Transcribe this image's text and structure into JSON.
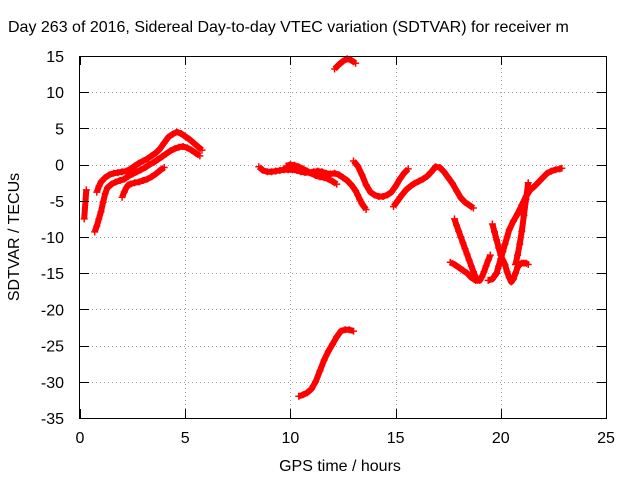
{
  "chart_data": {
    "type": "scatter",
    "title": "Day 263 of 2016, Sidereal Day-to-day VTEC variation (SDTVAR) for receiver m",
    "xlabel": "GPS time / hours",
    "ylabel": "SDTVAR / TECUs",
    "xlim": [
      0,
      25
    ],
    "ylim": [
      -35,
      15
    ],
    "x_ticks": [
      0,
      5,
      10,
      15,
      20,
      25
    ],
    "y_ticks": [
      -35,
      -30,
      -25,
      -20,
      -15,
      -10,
      -5,
      0,
      5,
      10,
      15
    ],
    "grid": true,
    "legend": "none",
    "marker": "plus",
    "color": "#ff0000",
    "series": [
      {
        "x": [
          0.2,
          0.3
        ],
        "y": [
          -7.5,
          -3.5
        ]
      },
      {
        "x": [
          0.7,
          0.8,
          0.9,
          1.0,
          1.1,
          1.2,
          1.3,
          1.5,
          1.7,
          1.9,
          2.1,
          2.3,
          2.5,
          2.7,
          2.9,
          3.1,
          3.3,
          3.5,
          3.7,
          3.9,
          4.1,
          4.3,
          4.5,
          4.7,
          4.9,
          5.1,
          5.3,
          5.5,
          5.7
        ],
        "y": [
          -9.3,
          -8.5,
          -7.5,
          -6.5,
          -5.2,
          -4.0,
          -3.2,
          -2.7,
          -2.4,
          -2.2,
          -2.0,
          -1.6,
          -1.3,
          -1.0,
          -0.7,
          -0.4,
          0.0,
          0.3,
          0.7,
          1.1,
          1.5,
          1.9,
          2.2,
          2.4,
          2.5,
          2.3,
          2.0,
          1.6,
          1.2
        ]
      },
      {
        "x": [
          0.8,
          0.9,
          1.0,
          1.2,
          1.4,
          1.6,
          1.8,
          2.0,
          2.2,
          2.4,
          2.6,
          2.8,
          3.0,
          3.2,
          3.4,
          3.6,
          3.8,
          4.0,
          4.2,
          4.4,
          4.6,
          4.8,
          5.0,
          5.2,
          5.4,
          5.6,
          5.8
        ],
        "y": [
          -3.8,
          -3.0,
          -2.4,
          -1.8,
          -1.4,
          -1.2,
          -1.1,
          -1.0,
          -0.9,
          -0.6,
          -0.2,
          0.2,
          0.5,
          0.8,
          1.2,
          1.6,
          2.2,
          3.0,
          3.8,
          4.2,
          4.5,
          4.3,
          3.9,
          3.5,
          3.0,
          2.5,
          2.0
        ]
      },
      {
        "x": [
          2.0,
          2.1,
          2.2,
          2.3,
          2.4,
          2.6,
          2.8,
          3.0,
          3.2,
          3.4,
          3.6,
          3.8,
          4.0
        ],
        "y": [
          -4.5,
          -3.8,
          -3.2,
          -2.8,
          -2.7,
          -2.5,
          -2.4,
          -2.2,
          -2.0,
          -1.7,
          -1.3,
          -0.8,
          -0.4
        ]
      },
      {
        "x": [
          8.5,
          8.7,
          8.9,
          9.1,
          9.3,
          9.5,
          9.7,
          9.9,
          10.1,
          10.3,
          10.5,
          10.7,
          10.9,
          11.1,
          11.3,
          11.5,
          11.7,
          11.9,
          12.1,
          12.3,
          12.5,
          12.7,
          12.9,
          13.0,
          13.1,
          13.2,
          13.3,
          13.4,
          13.5,
          13.6
        ],
        "y": [
          -0.3,
          -0.8,
          -1.0,
          -1.0,
          -0.9,
          -0.8,
          -0.7,
          -0.7,
          -0.7,
          -0.8,
          -1.0,
          -1.1,
          -1.1,
          -1.0,
          -0.9,
          -1.0,
          -1.2,
          -1.3,
          -1.2,
          -1.4,
          -1.8,
          -2.2,
          -2.8,
          -3.2,
          -3.6,
          -4.2,
          -4.8,
          -5.4,
          -5.8,
          -6.2
        ]
      },
      {
        "x": [
          9.8,
          10.0,
          10.2,
          10.4,
          10.6,
          10.8,
          11.0,
          11.2,
          11.4,
          11.6,
          11.8,
          12.0,
          12.2
        ],
        "y": [
          -0.2,
          0.0,
          -0.1,
          -0.3,
          -0.6,
          -0.9,
          -1.2,
          -1.5,
          -1.7,
          -1.8,
          -2.0,
          -2.3,
          -2.7
        ]
      },
      {
        "x": [
          10.4,
          10.6,
          10.8,
          11.0,
          11.2,
          11.4,
          11.6,
          11.8,
          12.0,
          12.2,
          12.4,
          12.6,
          12.8,
          13.0
        ],
        "y": [
          -32.0,
          -31.8,
          -31.5,
          -31.0,
          -30.0,
          -28.5,
          -27.0,
          -25.8,
          -24.8,
          -23.8,
          -23.0,
          -22.8,
          -22.8,
          -23.0
        ]
      },
      {
        "x": [
          12.1,
          12.3,
          12.5,
          12.7,
          12.9,
          13.1
        ],
        "y": [
          13.2,
          13.8,
          14.3,
          14.6,
          14.4,
          14.0
        ]
      },
      {
        "x": [
          13.0,
          13.2,
          13.4,
          13.6,
          13.8,
          14.0,
          14.2,
          14.4,
          14.6,
          14.8,
          15.0,
          15.2,
          15.4,
          15.6
        ],
        "y": [
          0.5,
          -0.2,
          -1.4,
          -2.8,
          -3.8,
          -4.2,
          -4.4,
          -4.4,
          -4.2,
          -3.8,
          -3.0,
          -2.0,
          -1.2,
          -0.6
        ]
      },
      {
        "x": [
          14.9,
          15.1,
          15.3,
          15.5,
          15.7,
          15.9,
          16.1,
          16.3,
          16.5,
          16.7,
          16.9,
          17.1,
          17.3,
          17.5,
          17.7,
          17.9,
          18.1,
          18.3,
          18.5,
          18.7
        ],
        "y": [
          -5.8,
          -5.0,
          -4.2,
          -3.5,
          -3.0,
          -2.6,
          -2.3,
          -2.0,
          -1.6,
          -1.0,
          -0.3,
          -0.4,
          -1.0,
          -1.8,
          -2.6,
          -3.6,
          -4.6,
          -5.2,
          -5.6,
          -6.0
        ]
      },
      {
        "x": [
          17.8,
          17.9,
          18.0,
          18.1,
          18.2,
          18.3,
          18.4,
          18.5,
          18.6,
          18.7,
          18.8,
          18.9,
          19.0,
          19.1,
          19.2,
          19.3,
          19.4,
          19.5
        ],
        "y": [
          -7.5,
          -8.4,
          -9.2,
          -10.0,
          -10.8,
          -11.6,
          -12.4,
          -13.2,
          -14.0,
          -14.8,
          -15.5,
          -16.0,
          -16.0,
          -15.5,
          -14.8,
          -14.0,
          -13.2,
          -12.5
        ]
      },
      {
        "x": [
          17.6,
          17.8,
          18.0,
          18.2,
          18.4,
          18.6,
          18.8,
          19.0
        ],
        "y": [
          -13.5,
          -13.8,
          -14.2,
          -14.6,
          -15.0,
          -15.6,
          -16.0,
          -15.8
        ]
      },
      {
        "x": [
          19.4,
          19.6,
          19.8,
          19.9,
          20.0,
          20.1,
          20.2,
          20.3,
          20.4,
          20.6,
          20.8,
          21.0,
          21.2,
          21.4,
          21.6,
          21.8,
          22.0,
          22.2,
          22.4,
          22.6,
          22.8,
          22.9
        ],
        "y": [
          -16.0,
          -15.8,
          -15.0,
          -14.0,
          -13.0,
          -12.0,
          -11.0,
          -10.0,
          -9.0,
          -7.8,
          -6.8,
          -5.6,
          -4.4,
          -3.5,
          -3.0,
          -2.4,
          -1.8,
          -1.2,
          -0.9,
          -0.7,
          -0.6,
          -0.5
        ]
      },
      {
        "x": [
          19.6,
          19.7,
          19.8,
          19.9,
          20.0,
          20.1,
          20.2,
          20.3,
          20.4,
          20.5,
          20.6,
          20.7,
          20.8,
          20.9,
          21.0,
          21.1,
          21.2,
          21.3
        ],
        "y": [
          -8.2,
          -9.3,
          -10.4,
          -11.5,
          -12.5,
          -13.2,
          -13.8,
          -14.8,
          -15.6,
          -16.2,
          -15.8,
          -15.0,
          -14.2,
          -13.8,
          -13.6,
          -13.6,
          -13.6,
          -13.8
        ]
      },
      {
        "x": [
          20.7,
          20.8,
          20.9,
          21.0,
          21.1,
          21.2,
          21.3
        ],
        "y": [
          -13.8,
          -12.5,
          -11.0,
          -9.2,
          -7.0,
          -4.8,
          -2.5
        ]
      }
    ]
  }
}
